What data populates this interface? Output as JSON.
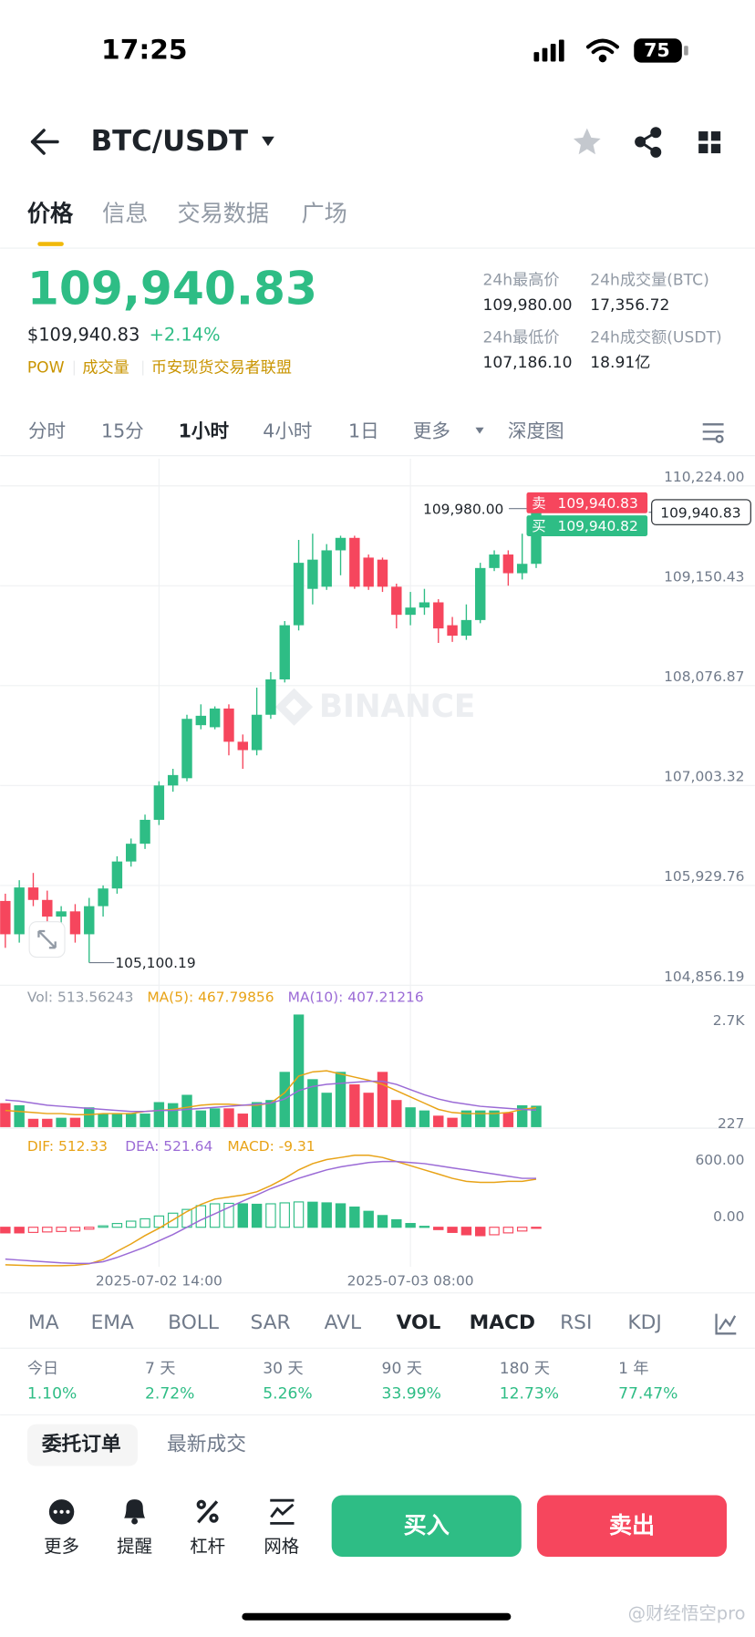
{
  "status_bar": {
    "time": "17:25",
    "battery": "75"
  },
  "header": {
    "title": "BTC/USDT"
  },
  "tabs": {
    "items": [
      "价格",
      "信息",
      "交易数据",
      "广场"
    ],
    "active": 0
  },
  "ticker": {
    "price": "109,940.83",
    "fiat_price": "$109,940.83",
    "change": "+2.14%",
    "tags": [
      "POW",
      "成交量",
      "币安现货交易者联盟"
    ]
  },
  "stats": [
    {
      "label": "24h最高价",
      "value": "109,980.00"
    },
    {
      "label": "24h成交量(BTC)",
      "value": "17,356.72"
    },
    {
      "label": "24h最低价",
      "value": "107,186.10"
    },
    {
      "label": "24h成交额(USDT)",
      "value": "18.91亿"
    }
  ],
  "intervals": {
    "items": [
      "分时",
      "15分",
      "1小时",
      "4小时",
      "1日",
      "更多",
      "深度图"
    ],
    "active": 2
  },
  "chart_data": [
    {
      "type": "candlestick",
      "watermark": "BINANCE",
      "categories": [
        null,
        null,
        null,
        null,
        null,
        null,
        null,
        null,
        null,
        null,
        null,
        "2025-07-02 14:00",
        null,
        null,
        null,
        null,
        null,
        null,
        null,
        null,
        null,
        null,
        null,
        null,
        null,
        null,
        null,
        null,
        null,
        "2025-07-03 08:00",
        null,
        null,
        null,
        null,
        null,
        null,
        null,
        null,
        null
      ],
      "open": [
        105763,
        105405,
        105908,
        105774,
        105595,
        105651,
        105405,
        105707,
        105897,
        106187,
        106378,
        106635,
        107004,
        107082,
        107652,
        107630,
        107831,
        107474,
        107384,
        107764,
        108144,
        108726,
        109117,
        109140,
        109531,
        109665,
        109453,
        109431,
        109140,
        108838,
        108916,
        108972,
        108726,
        108614,
        108782,
        109341,
        109486,
        109285,
        109386
      ],
      "high": [
        105841,
        105986,
        106064,
        105874,
        105707,
        105729,
        105796,
        105930,
        106243,
        106434,
        106691,
        107049,
        107183,
        107764,
        107876,
        107854,
        107876,
        107552,
        108055,
        108223,
        108771,
        109643,
        109710,
        109598,
        109688,
        109688,
        109486,
        109453,
        109173,
        109084,
        109117,
        109006,
        108815,
        108950,
        109397,
        109531,
        109531,
        109710,
        109980
      ],
      "low": [
        105259,
        105315,
        105707,
        105483,
        105483,
        105315,
        105100.19,
        105595,
        105841,
        106132,
        106322,
        106579,
        106937,
        107049,
        107608,
        107608,
        107328,
        107183,
        107328,
        107720,
        108111,
        108670,
        108950,
        109106,
        109263,
        109117,
        109106,
        109084,
        108692,
        108726,
        108838,
        108536,
        108547,
        108569,
        108748,
        109308,
        109151,
        109218,
        109341
      ],
      "close": [
        105405,
        105908,
        105774,
        105595,
        105651,
        105405,
        105707,
        105897,
        106187,
        106378,
        106635,
        107004,
        107116,
        107720,
        107753,
        107831,
        107474,
        107384,
        107764,
        108144,
        108726,
        109397,
        109431,
        109531,
        109665,
        109140,
        109140,
        109140,
        108838,
        108916,
        108972,
        108692,
        108614,
        108782,
        109341,
        109486,
        109285,
        109386,
        109940.83
      ],
      "up_color": "#2ebd85",
      "down_color": "#f6465d",
      "ylim": [
        104856.19,
        110515
      ],
      "yticks": [
        {
          "value": 110224,
          "label": "110,224.00"
        },
        {
          "value": 109150.43,
          "label": "109,150.43"
        },
        {
          "value": 108076.87,
          "label": "108,076.87"
        },
        {
          "value": 107003.32,
          "label": "107,003.32"
        },
        {
          "value": 105929.76,
          "label": "105,929.76"
        },
        {
          "value": 104856.19,
          "label": "104,856.19"
        }
      ],
      "grid": true,
      "high_marker": {
        "value": 109980,
        "label": "109,980.00"
      },
      "low_marker": {
        "value": 105100.19,
        "label": "105,100.19"
      },
      "ask": {
        "side": "卖",
        "value": 109940.83,
        "label": "109,940.83"
      },
      "bid": {
        "side": "买",
        "value": 109940.82,
        "label": "109,940.82"
      },
      "last": {
        "value": 109940.83,
        "label": "109,940.83"
      }
    },
    {
      "type": "bar",
      "series": [
        {
          "name": "Vol: 513.56243",
          "color": "#929aa5",
          "values": [
            575,
            525,
            200,
            200,
            225,
            225,
            475,
            325,
            325,
            325,
            325,
            600,
            575,
            775,
            400,
            450,
            450,
            325,
            600,
            650,
            1325,
            2700,
            1150,
            825,
            1325,
            1025,
            825,
            1325,
            650,
            475,
            400,
            275,
            225,
            400,
            400,
            400,
            350,
            525,
            513.56243
          ]
        },
        {
          "name": "MA(5): 467.79856",
          "color": "#e8a317",
          "values": [
            400,
            375,
            350,
            325,
            325,
            300,
            300,
            325,
            325,
            325,
            375,
            400,
            425,
            475,
            525,
            550,
            550,
            525,
            525,
            575,
            825,
            1225,
            1325,
            1350,
            1275,
            1200,
            1125,
            1025,
            875,
            725,
            575,
            425,
            350,
            325,
            325,
            325,
            350,
            425,
            467.79856
          ]
        },
        {
          "name": "MA(10): 407.21216",
          "color": "#9b6bd6",
          "values": [
            650,
            625,
            575,
            525,
            500,
            475,
            450,
            425,
            400,
            375,
            375,
            400,
            400,
            425,
            450,
            475,
            500,
            525,
            550,
            575,
            675,
            875,
            975,
            1025,
            1050,
            1075,
            1100,
            1100,
            1025,
            900,
            775,
            675,
            600,
            550,
            500,
            475,
            450,
            425,
            407.21216
          ]
        }
      ],
      "ylim": [
        0,
        3400
      ],
      "yticks": [
        {
          "value": 2700,
          "label": "2.7K"
        },
        227
      ]
    },
    {
      "type": "macd",
      "series": [
        {
          "name": "DIF: 512.33",
          "color": "#e8a317",
          "values": [
            -400,
            -405,
            -410,
            -410,
            -410,
            -405,
            -390,
            -344,
            -256,
            -178,
            -89,
            -11,
            78,
            167,
            244,
            300,
            322,
            344,
            378,
            444,
            522,
            611,
            678,
            722,
            744,
            767,
            767,
            744,
            700,
            656,
            611,
            567,
            522,
            489,
            478,
            478,
            489,
            489,
            512.33
          ]
        },
        {
          "name": "DEA: 521.64",
          "color": "#9b6bd6",
          "values": [
            -340,
            -350,
            -360,
            -370,
            -380,
            -385,
            -385,
            -367,
            -322,
            -267,
            -211,
            -144,
            -78,
            0,
            78,
            144,
            211,
            278,
            344,
            411,
            467,
            522,
            567,
            611,
            644,
            667,
            689,
            700,
            700,
            689,
            678,
            656,
            633,
            611,
            589,
            567,
            544,
            522,
            521.64
          ]
        },
        {
          "name": "MACD: -9.31",
          "color": "#e8a317",
          "values": [
            -60,
            -60,
            -55,
            -50,
            -45,
            -40,
            -20,
            15,
            40,
            65,
            90,
            120,
            150,
            190,
            230,
            250,
            255,
            250,
            245,
            250,
            260,
            270,
            267,
            260,
            250,
            215,
            170,
            125,
            80,
            40,
            10,
            -25,
            -55,
            -80,
            -90,
            -80,
            -60,
            -40,
            -9.31
          ]
        }
      ],
      "ylim": [
        -422,
        1056
      ],
      "yticks": [
        {
          "value": 600,
          "label": "600.00"
        },
        {
          "value": 0,
          "label": "0.00"
        }
      ]
    }
  ],
  "indicators": {
    "items": [
      "MA",
      "EMA",
      "BOLL",
      "SAR",
      "AVL",
      "VOL",
      "MACD",
      "RSI",
      "KDJ"
    ],
    "active": [
      5,
      6
    ]
  },
  "performance": [
    {
      "label": "今日",
      "value": "1.10%"
    },
    {
      "label": "7 天",
      "value": "2.72%"
    },
    {
      "label": "30 天",
      "value": "5.26%"
    },
    {
      "label": "90 天",
      "value": "33.99%"
    },
    {
      "label": "180 天",
      "value": "12.73%"
    },
    {
      "label": "1 年",
      "value": "77.47%"
    }
  ],
  "order_tabs": {
    "items": [
      "委托订单",
      "最新成交"
    ],
    "active": 0
  },
  "actions": [
    "更多",
    "提醒",
    "杠杆",
    "网格"
  ],
  "buttons": {
    "buy": "买入",
    "sell": "卖出"
  },
  "watermark": "@财经悟空pro"
}
